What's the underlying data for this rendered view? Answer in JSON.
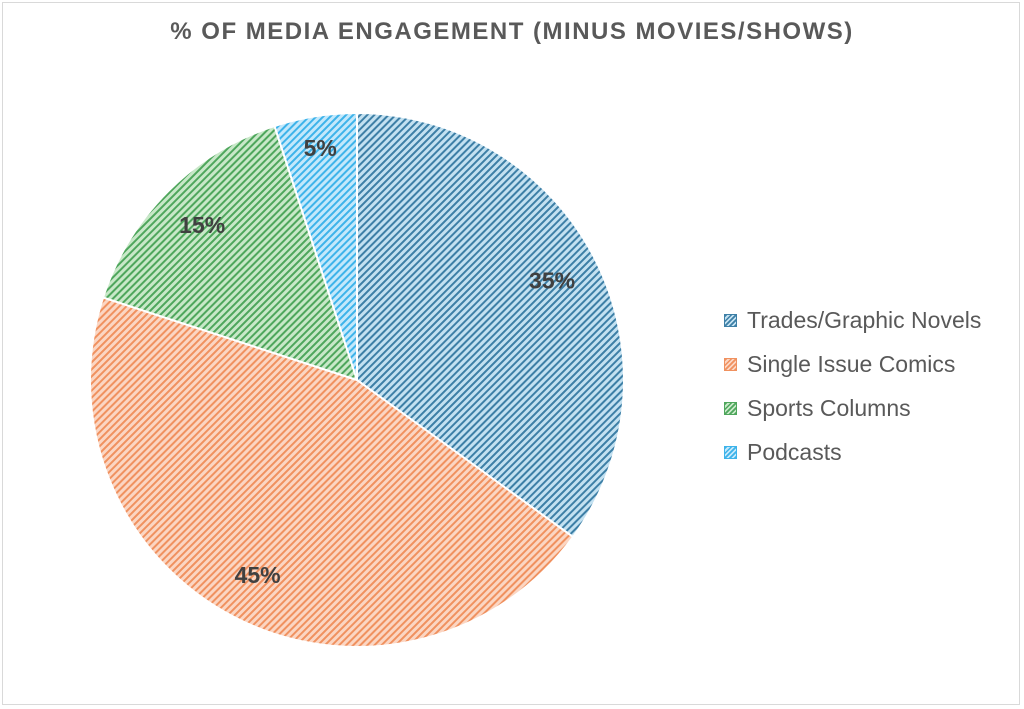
{
  "chart_data": {
    "type": "pie",
    "title": "% OF MEDIA ENGAGEMENT (MINUS MOVIES/SHOWS)",
    "categories": [
      "Trades/Graphic Novels",
      "Single Issue Comics",
      "Sports Columns",
      "Podcasts"
    ],
    "values": [
      35,
      45,
      15,
      5
    ],
    "data_labels": [
      "35%",
      "45%",
      "15%",
      "5%"
    ],
    "colors": [
      {
        "line": "#3d7fa6",
        "fill": "#c3e1f1"
      },
      {
        "line": "#f0915f",
        "fill": "#fbd6c3"
      },
      {
        "line": "#4ea65c",
        "fill": "#c8e8c8"
      },
      {
        "line": "#3db3ea",
        "fill": "#c3e8fb"
      }
    ],
    "start_angle": "12 o'clock",
    "direction": "clockwise",
    "legend_position": "right"
  }
}
